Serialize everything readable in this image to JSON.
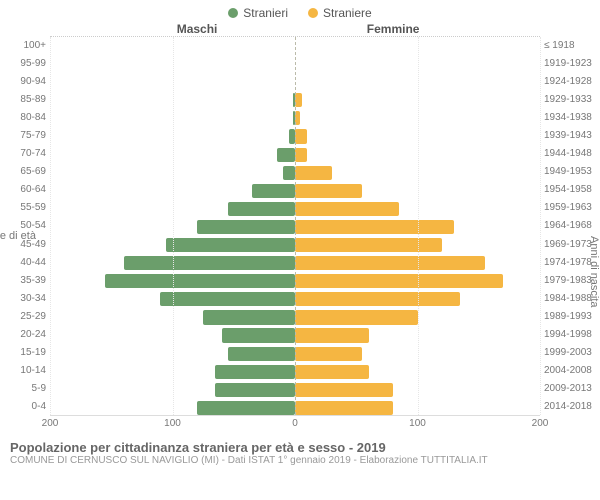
{
  "legend": {
    "male": {
      "label": "Stranieri",
      "color": "#6b9e6b"
    },
    "female": {
      "label": "Straniere",
      "color": "#f5b642"
    }
  },
  "header": {
    "left": "Maschi",
    "right": "Femmine"
  },
  "axes": {
    "y_left_label": "Fasce di età",
    "y_right_label": "Anni di nascita",
    "x_ticks": [
      200,
      100,
      0,
      100,
      200
    ],
    "x_max": 200,
    "grid_color": "#e6e6e6",
    "center_color": "#bba"
  },
  "colors": {
    "male_bar": "#6b9e6b",
    "female_bar": "#f5b642",
    "background": "#ffffff",
    "text": "#777"
  },
  "rows": [
    {
      "age": "100+",
      "birth": "≤ 1918",
      "m": 0,
      "f": 0
    },
    {
      "age": "95-99",
      "birth": "1919-1923",
      "m": 0,
      "f": 0
    },
    {
      "age": "90-94",
      "birth": "1924-1928",
      "m": 0,
      "f": 0
    },
    {
      "age": "85-89",
      "birth": "1929-1933",
      "m": 2,
      "f": 6
    },
    {
      "age": "80-84",
      "birth": "1934-1938",
      "m": 2,
      "f": 4
    },
    {
      "age": "75-79",
      "birth": "1939-1943",
      "m": 5,
      "f": 10
    },
    {
      "age": "70-74",
      "birth": "1944-1948",
      "m": 15,
      "f": 10
    },
    {
      "age": "65-69",
      "birth": "1949-1953",
      "m": 10,
      "f": 30
    },
    {
      "age": "60-64",
      "birth": "1954-1958",
      "m": 35,
      "f": 55
    },
    {
      "age": "55-59",
      "birth": "1959-1963",
      "m": 55,
      "f": 85
    },
    {
      "age": "50-54",
      "birth": "1964-1968",
      "m": 80,
      "f": 130
    },
    {
      "age": "45-49",
      "birth": "1969-1973",
      "m": 105,
      "f": 120
    },
    {
      "age": "40-44",
      "birth": "1974-1978",
      "m": 140,
      "f": 155
    },
    {
      "age": "35-39",
      "birth": "1979-1983",
      "m": 155,
      "f": 170
    },
    {
      "age": "30-34",
      "birth": "1984-1988",
      "m": 110,
      "f": 135
    },
    {
      "age": "25-29",
      "birth": "1989-1993",
      "m": 75,
      "f": 100
    },
    {
      "age": "20-24",
      "birth": "1994-1998",
      "m": 60,
      "f": 60
    },
    {
      "age": "15-19",
      "birth": "1999-2003",
      "m": 55,
      "f": 55
    },
    {
      "age": "10-14",
      "birth": "2004-2008",
      "m": 65,
      "f": 60
    },
    {
      "age": "5-9",
      "birth": "2009-2013",
      "m": 65,
      "f": 80
    },
    {
      "age": "0-4",
      "birth": "2014-2018",
      "m": 80,
      "f": 80
    }
  ],
  "footer": {
    "title": "Popolazione per cittadinanza straniera per età e sesso - 2019",
    "subtitle": "COMUNE DI CERNUSCO SUL NAVIGLIO (MI) - Dati ISTAT 1° gennaio 2019 - Elaborazione TUTTITALIA.IT"
  }
}
